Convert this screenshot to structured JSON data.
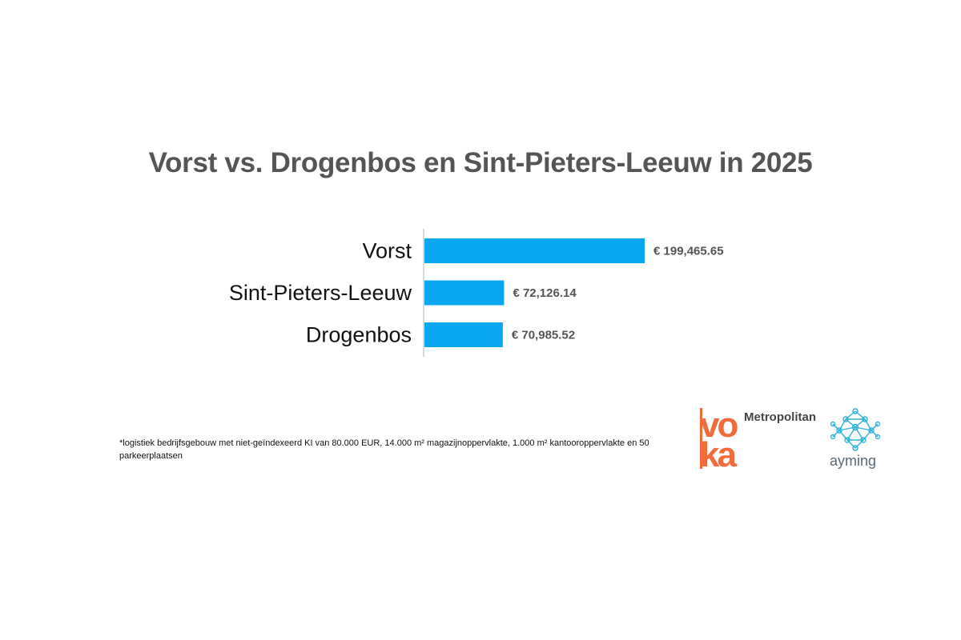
{
  "chart_data": {
    "type": "bar",
    "orientation": "horizontal",
    "title": "Vorst vs. Drogenbos en Sint-Pieters-Leeuw in 2025",
    "categories": [
      "Vorst",
      "Sint-Pieters-Leeuw",
      "Drogenbos"
    ],
    "values": [
      199465.65,
      72126.14,
      70985.52
    ],
    "value_labels": [
      "€ 199,465.65",
      "€ 72,126.14",
      "€ 70,985.52"
    ],
    "xlim": [
      0,
      200000
    ],
    "bar_color": "#0aa7f0",
    "grid": false,
    "legend": "none"
  },
  "footnote": "*logistiek bedrijfsgebouw met niet-geïndexeerd KI van 80.000 EUR, 14.000 m² magazijnoppervlakte, 1.000 m² kantooroppervlakte en 50 parkeerplaatsen",
  "logos": {
    "voka": {
      "text": "voka",
      "color": "#f26b3a"
    },
    "metropolitan": "Metropolitan",
    "ayming": {
      "text": "ayming",
      "color": "#2bb3d6",
      "icon": "network-icon"
    }
  }
}
